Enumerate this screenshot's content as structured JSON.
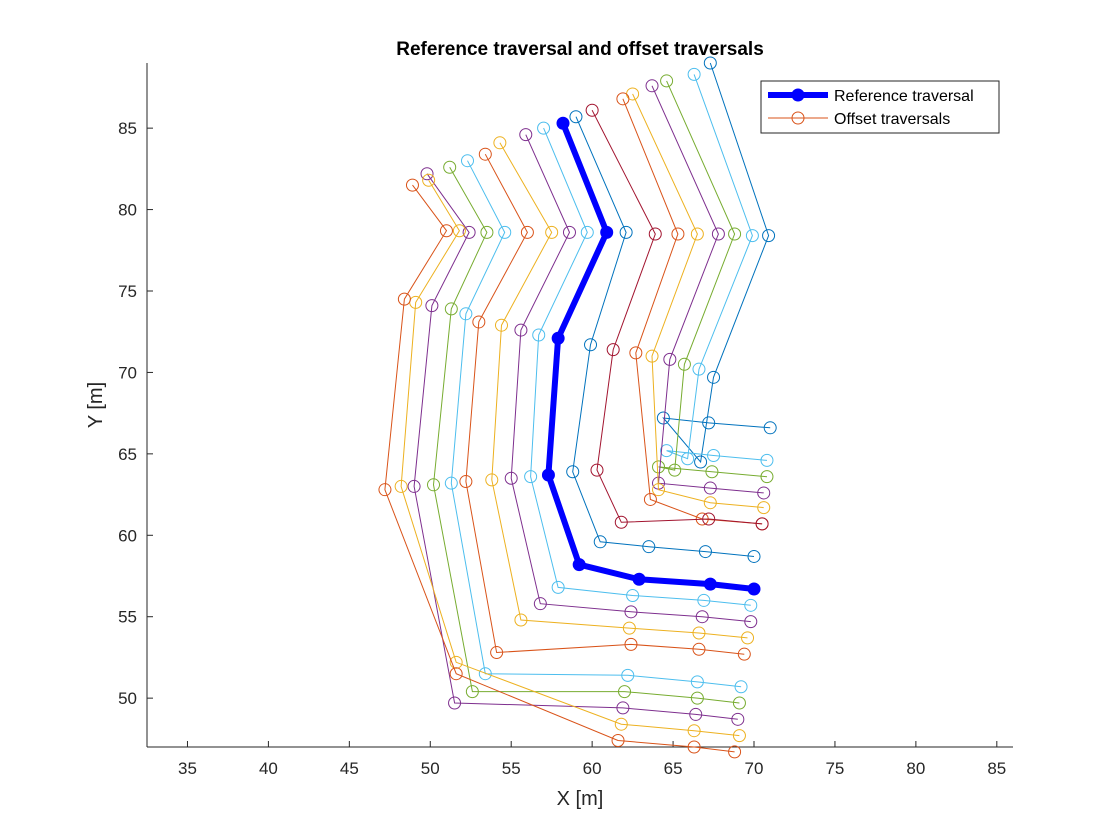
{
  "chart_data": {
    "type": "line",
    "title": "Reference traversal and offset traversals",
    "xlabel": "X [m]",
    "ylabel": "Y [m]",
    "xlim": [
      32.5,
      86
    ],
    "ylim": [
      47,
      89
    ],
    "xticks": [
      35,
      40,
      45,
      50,
      55,
      60,
      65,
      70,
      75,
      80,
      85
    ],
    "yticks": [
      50,
      55,
      60,
      65,
      70,
      75,
      80,
      85
    ],
    "grid": false,
    "legend": {
      "placement": "top-right",
      "entries": [
        "Reference traversal",
        "Offset traversals"
      ]
    },
    "reference": {
      "name": "Reference traversal",
      "color": "#0000ff",
      "points": [
        [
          58.2,
          85.3
        ],
        [
          60.9,
          78.6
        ],
        [
          57.9,
          72.1
        ],
        [
          57.3,
          63.7
        ],
        [
          59.2,
          58.2
        ],
        [
          62.9,
          57.3
        ],
        [
          67.3,
          57.0
        ],
        [
          70.0,
          56.7
        ]
      ]
    },
    "offsets": [
      {
        "color": "#0072bd",
        "points": [
          [
            67.3,
            89.0
          ],
          [
            70.9,
            78.4
          ],
          [
            67.5,
            69.7
          ],
          [
            66.7,
            64.5
          ],
          [
            64.4,
            67.2
          ],
          [
            67.2,
            66.9
          ],
          [
            71.0,
            66.6
          ]
        ]
      },
      {
        "color": "#4dbeee",
        "points": [
          [
            66.3,
            88.3
          ],
          [
            69.9,
            78.4
          ],
          [
            66.6,
            70.2
          ],
          [
            65.9,
            64.7
          ],
          [
            64.6,
            65.2
          ],
          [
            67.5,
            64.9
          ],
          [
            70.8,
            64.6
          ]
        ]
      },
      {
        "color": "#77ac30",
        "points": [
          [
            64.6,
            87.9
          ],
          [
            68.8,
            78.5
          ],
          [
            65.7,
            70.5
          ],
          [
            65.1,
            64.0
          ],
          [
            64.1,
            64.2
          ],
          [
            67.4,
            63.9
          ],
          [
            70.8,
            63.6
          ]
        ]
      },
      {
        "color": "#7e2f8e",
        "points": [
          [
            63.7,
            87.6
          ],
          [
            67.8,
            78.5
          ],
          [
            64.8,
            70.8
          ],
          [
            64.1,
            63.2
          ],
          [
            67.3,
            62.9
          ],
          [
            70.6,
            62.6
          ]
        ]
      },
      {
        "color": "#edb120",
        "points": [
          [
            62.5,
            87.1
          ],
          [
            66.5,
            78.5
          ],
          [
            63.7,
            71.0
          ],
          [
            64.1,
            62.8
          ],
          [
            67.3,
            62.0
          ],
          [
            70.6,
            61.7
          ]
        ]
      },
      {
        "color": "#d95319",
        "points": [
          [
            61.9,
            86.8
          ],
          [
            65.3,
            78.5
          ],
          [
            62.7,
            71.2
          ],
          [
            63.6,
            62.2
          ],
          [
            66.8,
            61.0
          ],
          [
            70.5,
            60.7
          ]
        ]
      },
      {
        "color": "#a2142f",
        "points": [
          [
            60.0,
            86.1
          ],
          [
            63.9,
            78.5
          ],
          [
            61.3,
            71.4
          ],
          [
            60.3,
            64.0
          ],
          [
            61.8,
            60.8
          ],
          [
            67.2,
            61.0
          ],
          [
            70.5,
            60.7
          ]
        ]
      },
      {
        "color": "#0072bd",
        "points": [
          [
            59.0,
            85.7
          ],
          [
            62.1,
            78.6
          ],
          [
            59.9,
            71.7
          ],
          [
            58.8,
            63.9
          ],
          [
            60.5,
            59.6
          ],
          [
            63.5,
            59.3
          ],
          [
            67.0,
            59.0
          ],
          [
            70.0,
            58.7
          ]
        ]
      },
      {
        "color": "#4dbeee",
        "points": [
          [
            57.0,
            85.0
          ],
          [
            59.7,
            78.6
          ],
          [
            56.7,
            72.3
          ],
          [
            56.2,
            63.6
          ],
          [
            57.9,
            56.8
          ],
          [
            62.5,
            56.3
          ],
          [
            66.9,
            56.0
          ],
          [
            69.8,
            55.7
          ]
        ]
      },
      {
        "color": "#7e2f8e",
        "points": [
          [
            55.9,
            84.6
          ],
          [
            58.6,
            78.6
          ],
          [
            55.6,
            72.6
          ],
          [
            55.0,
            63.5
          ],
          [
            56.8,
            55.8
          ],
          [
            62.4,
            55.3
          ],
          [
            66.8,
            55.0
          ],
          [
            69.8,
            54.7
          ]
        ]
      },
      {
        "color": "#edb120",
        "points": [
          [
            54.3,
            84.1
          ],
          [
            57.5,
            78.6
          ],
          [
            54.4,
            72.9
          ],
          [
            53.8,
            63.4
          ],
          [
            55.6,
            54.8
          ],
          [
            62.3,
            54.3
          ],
          [
            66.6,
            54.0
          ],
          [
            69.6,
            53.7
          ]
        ]
      },
      {
        "color": "#d95319",
        "points": [
          [
            53.4,
            83.4
          ],
          [
            56.0,
            78.6
          ],
          [
            53.0,
            73.1
          ],
          [
            52.2,
            63.3
          ],
          [
            54.1,
            52.8
          ],
          [
            62.4,
            53.3
          ],
          [
            66.6,
            53.0
          ],
          [
            69.4,
            52.7
          ]
        ]
      },
      {
        "color": "#4dbeee",
        "points": [
          [
            52.3,
            83.0
          ],
          [
            54.6,
            78.6
          ],
          [
            52.2,
            73.6
          ],
          [
            51.3,
            63.2
          ],
          [
            53.4,
            51.5
          ],
          [
            62.2,
            51.4
          ],
          [
            66.5,
            51.0
          ],
          [
            69.2,
            50.7
          ]
        ]
      },
      {
        "color": "#77ac30",
        "points": [
          [
            51.2,
            82.6
          ],
          [
            53.5,
            78.6
          ],
          [
            51.3,
            73.9
          ],
          [
            50.2,
            63.1
          ],
          [
            52.6,
            50.4
          ],
          [
            62.0,
            50.4
          ],
          [
            66.5,
            50.0
          ],
          [
            69.1,
            49.7
          ]
        ]
      },
      {
        "color": "#7e2f8e",
        "points": [
          [
            49.8,
            82.2
          ],
          [
            52.4,
            78.6
          ],
          [
            50.1,
            74.1
          ],
          [
            49.0,
            63.0
          ],
          [
            51.5,
            49.7
          ],
          [
            61.9,
            49.4
          ],
          [
            66.4,
            49.0
          ],
          [
            69.0,
            48.7
          ]
        ]
      },
      {
        "color": "#edb120",
        "points": [
          [
            49.9,
            81.8
          ],
          [
            51.8,
            78.7
          ],
          [
            49.1,
            74.3
          ],
          [
            48.2,
            63.0
          ],
          [
            51.6,
            52.2
          ],
          [
            61.8,
            48.4
          ],
          [
            66.3,
            48.0
          ],
          [
            69.1,
            47.7
          ]
        ]
      },
      {
        "color": "#d95319",
        "points": [
          [
            48.9,
            81.5
          ],
          [
            51.0,
            78.7
          ],
          [
            48.4,
            74.5
          ],
          [
            47.2,
            62.8
          ],
          [
            51.6,
            51.5
          ],
          [
            61.6,
            47.4
          ],
          [
            66.3,
            47.0
          ],
          [
            68.8,
            46.7
          ]
        ]
      }
    ]
  }
}
